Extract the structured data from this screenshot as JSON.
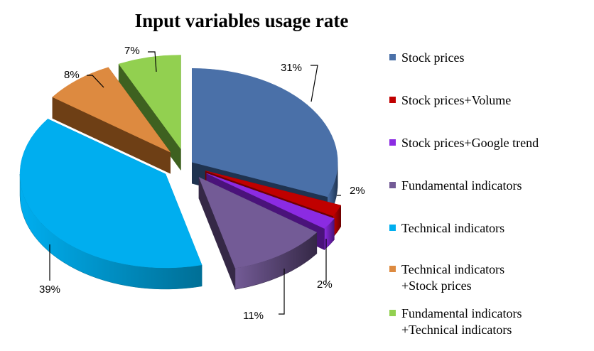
{
  "chart_data": {
    "type": "pie",
    "title": "Input variables usage rate",
    "legend_position": "right",
    "categories": [
      "Stock prices",
      "Stock prices+Volume",
      "Stock prices+Google trend",
      "Fundamental indicators",
      "Technical indicators",
      "Technical indicators\n+Stock prices",
      "Fundamental indicators\n+Technical indicators"
    ],
    "values": [
      31,
      2,
      2,
      11,
      39,
      8,
      7
    ],
    "labels": [
      "31%",
      "2%",
      "2%",
      "11%",
      "39%",
      "8%",
      "7%"
    ],
    "colors": [
      "#4A70A8",
      "#C00000",
      "#8B2BE2",
      "#735B96",
      "#00AEEF",
      "#DD8A40",
      "#92D050"
    ],
    "dark_colors": [
      "#1F3350",
      "#6E0000",
      "#4A137A",
      "#352846",
      "#006F96",
      "#6E3F15",
      "#3E6120"
    ]
  }
}
